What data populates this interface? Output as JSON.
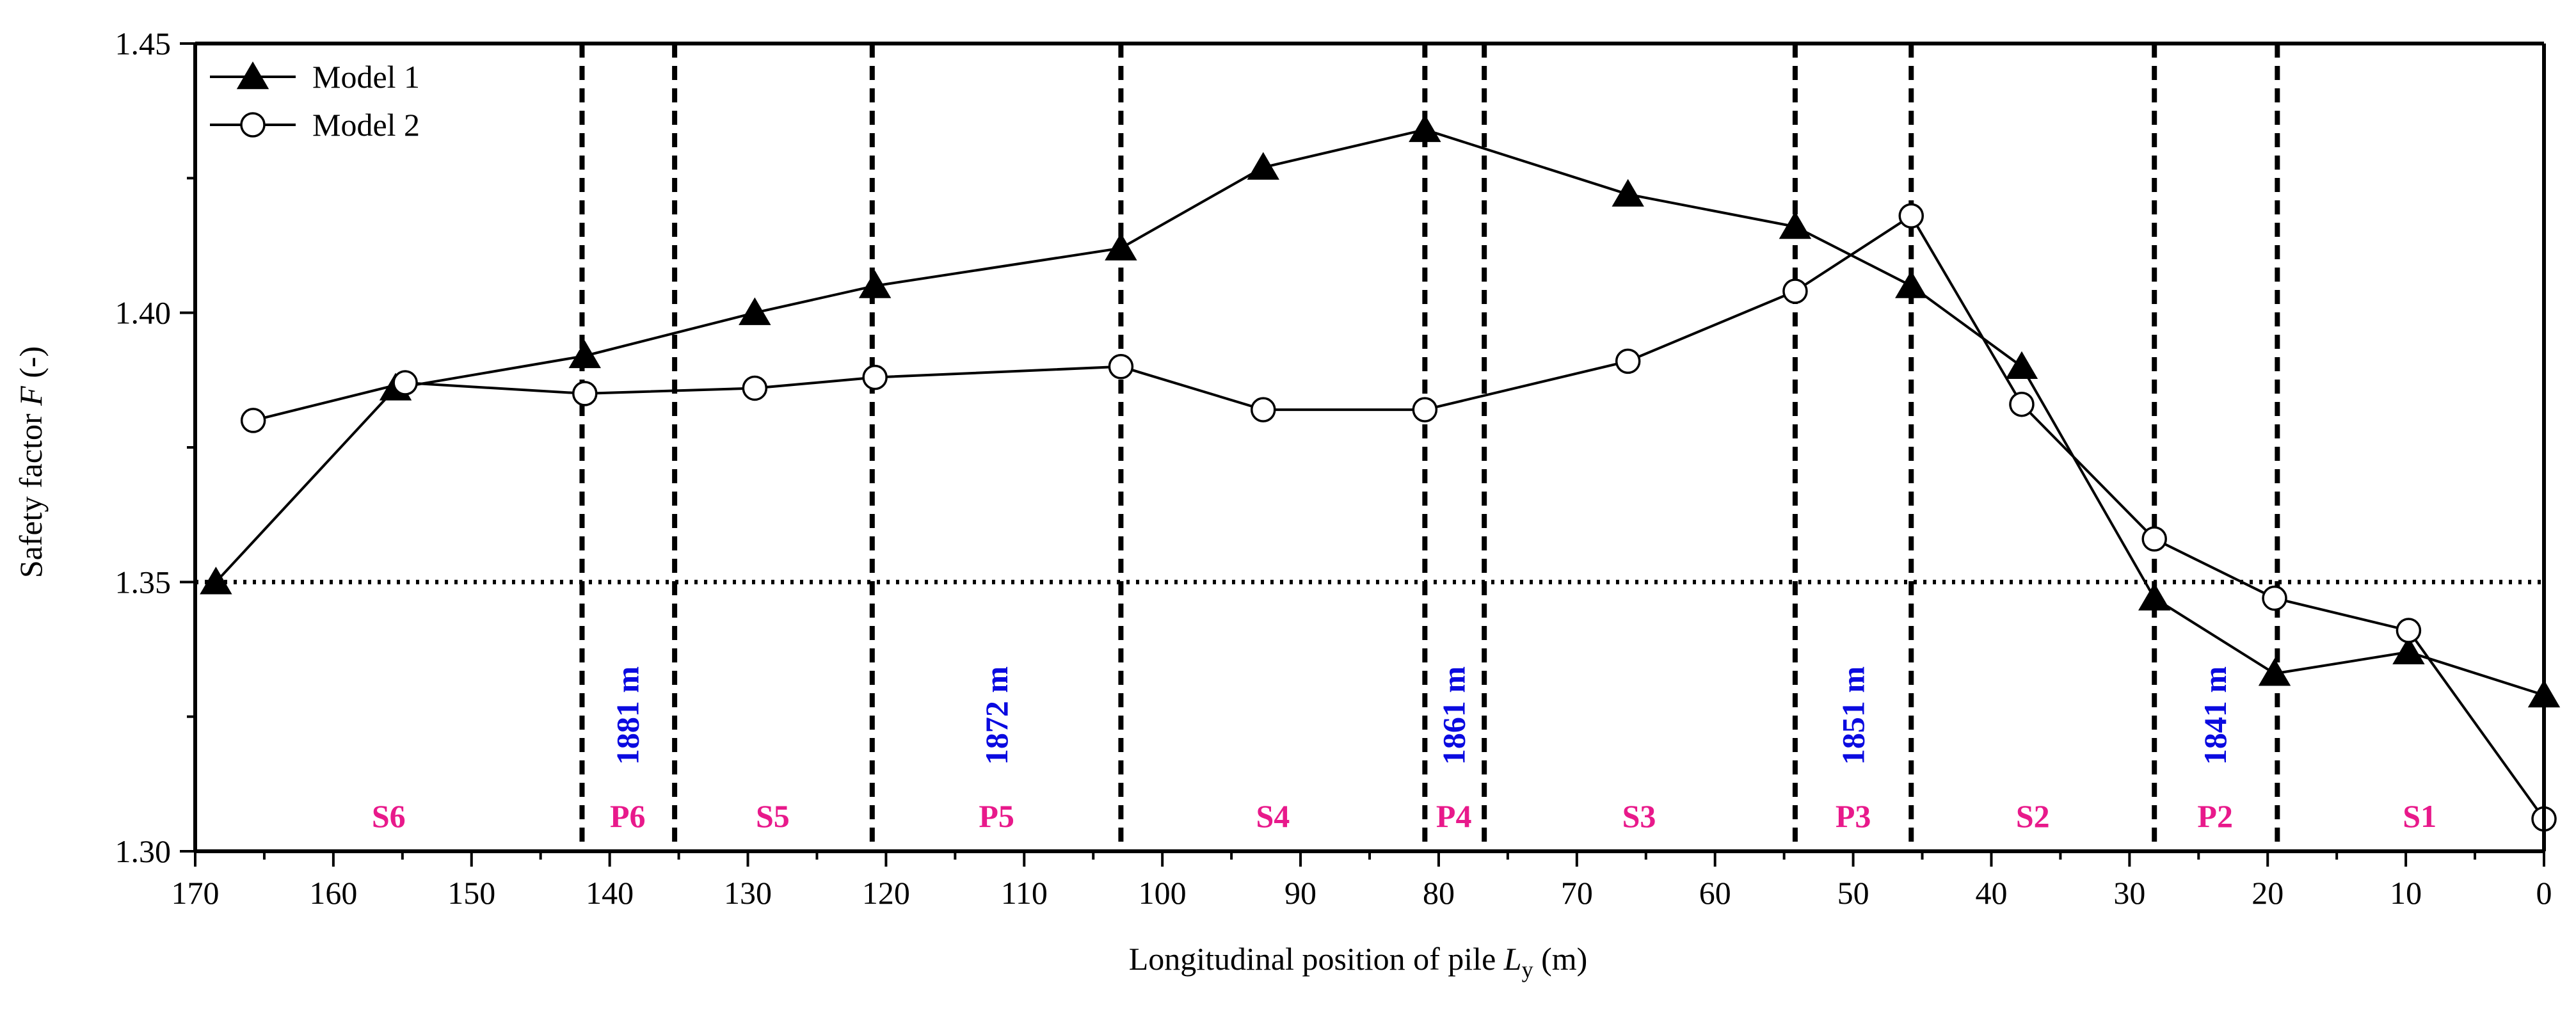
{
  "chart_data": {
    "type": "line",
    "title": "",
    "xlabel_parts": [
      "Longitudinal position of  pile ",
      "L",
      "y",
      " (m)"
    ],
    "ylabel_parts": [
      "Safety factor ",
      "F",
      " (-)"
    ],
    "xlim": [
      170,
      0
    ],
    "ylim": [
      1.3,
      1.45
    ],
    "xticks": [
      170,
      160,
      150,
      140,
      130,
      120,
      110,
      100,
      90,
      80,
      70,
      60,
      50,
      40,
      30,
      20,
      10,
      0
    ],
    "yticks": [
      1.3,
      1.35,
      1.4,
      1.45
    ],
    "ytick_labels": [
      "1.30",
      "1.35",
      "1.40",
      "1.45"
    ],
    "reference_line": {
      "y": 1.35,
      "style": "dotted"
    },
    "legend_position": "top-left",
    "series": [
      {
        "name": "Model 1",
        "marker": "filled-triangle",
        "points": [
          [
            168.5,
            1.35
          ],
          [
            155.5,
            1.386
          ],
          [
            141.8,
            1.392
          ],
          [
            129.5,
            1.4
          ],
          [
            120.8,
            1.405
          ],
          [
            103.0,
            1.412
          ],
          [
            92.7,
            1.427
          ],
          [
            81.0,
            1.434
          ],
          [
            66.3,
            1.422
          ],
          [
            54.2,
            1.416
          ],
          [
            45.8,
            1.405
          ],
          [
            37.8,
            1.39
          ],
          [
            28.2,
            1.347
          ],
          [
            19.5,
            1.333
          ],
          [
            9.8,
            1.337
          ],
          [
            0,
            1.329
          ]
        ]
      },
      {
        "name": "Model 2",
        "marker": "open-circle",
        "points": [
          [
            165.8,
            1.38
          ],
          [
            154.8,
            1.387
          ],
          [
            141.8,
            1.385
          ],
          [
            129.5,
            1.386
          ],
          [
            120.8,
            1.388
          ],
          [
            103.0,
            1.39
          ],
          [
            92.7,
            1.382
          ],
          [
            81.0,
            1.382
          ],
          [
            66.3,
            1.391
          ],
          [
            54.2,
            1.404
          ],
          [
            45.8,
            1.418
          ],
          [
            37.8,
            1.383
          ],
          [
            28.2,
            1.358
          ],
          [
            19.5,
            1.347
          ],
          [
            9.8,
            1.341
          ],
          [
            0,
            1.306
          ]
        ]
      }
    ],
    "dividers": [
      142,
      135.3,
      121,
      103,
      81,
      76.7,
      54.2,
      45.8,
      28.2,
      19.3
    ],
    "segment_labels": [
      {
        "text": "S6",
        "x": 156
      },
      {
        "text": "P6",
        "x": 138.7
      },
      {
        "text": "S5",
        "x": 128.2
      },
      {
        "text": "P5",
        "x": 112
      },
      {
        "text": "S4",
        "x": 92
      },
      {
        "text": "P4",
        "x": 78.9
      },
      {
        "text": "S3",
        "x": 65.5
      },
      {
        "text": "P3",
        "x": 50
      },
      {
        "text": "S2",
        "x": 37
      },
      {
        "text": "P2",
        "x": 23.8
      },
      {
        "text": "S1",
        "x": 9
      }
    ],
    "elevation_labels": [
      {
        "text": "1881 m",
        "x": 138.7
      },
      {
        "text": "1872 m",
        "x": 112
      },
      {
        "text": "1861 m",
        "x": 78.9
      },
      {
        "text": "1851 m",
        "x": 50
      },
      {
        "text": "1841 m",
        "x": 23.8
      }
    ],
    "colors": {
      "segment_label": "#e8198b",
      "elevation_label": "#0a0ae0",
      "line": "#000000"
    }
  }
}
